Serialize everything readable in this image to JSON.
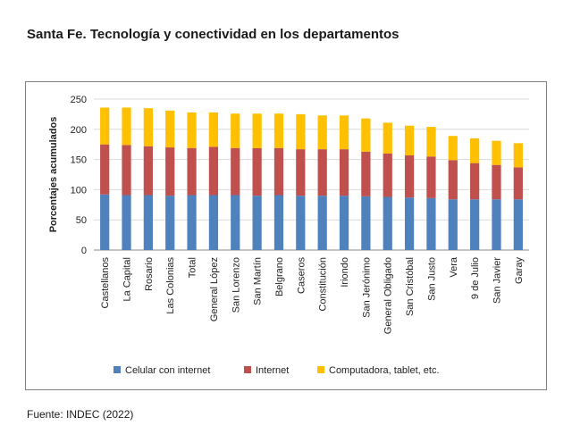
{
  "title": "Santa Fe. Tecnología y conectividad en los departamentos",
  "source": "Fuente: INDEC (2022)",
  "chart_data": {
    "type": "bar",
    "stacked": true,
    "ylabel": "Porcentajes acumulados",
    "xlabel": "",
    "ylim": [
      0,
      250
    ],
    "yticks": [
      0,
      50,
      100,
      150,
      200,
      250
    ],
    "grid": true,
    "legend_position": "bottom",
    "categories": [
      "Castellanos",
      "La Capital",
      "Rosario",
      "Las Colonias",
      "Total",
      "General López",
      "San Lorenzo",
      "San Martín",
      "Belgrano",
      "Caseros",
      "Constitución",
      "Iriondo",
      "San Jerónimo",
      "General Obligado",
      "San Cristóbal",
      "San Justo",
      "Vera",
      "9 de Julio",
      "San Javier",
      "Garay"
    ],
    "series": [
      {
        "name": "Celular con internet",
        "color": "#4f81bd",
        "values": [
          92,
          91,
          91,
          90,
          91,
          91,
          91,
          90,
          91,
          90,
          90,
          90,
          89,
          88,
          87,
          86,
          84,
          84,
          84,
          84
        ]
      },
      {
        "name": "Internet",
        "color": "#c0504d",
        "values": [
          83,
          83,
          81,
          80,
          78,
          80,
          78,
          79,
          78,
          77,
          77,
          77,
          74,
          72,
          70,
          69,
          65,
          60,
          57,
          53
        ]
      },
      {
        "name": "Computadora, tablet, etc.",
        "color": "#ffc000",
        "values": [
          61,
          62,
          63,
          61,
          59,
          57,
          57,
          57,
          57,
          58,
          56,
          56,
          55,
          51,
          49,
          49,
          40,
          41,
          40,
          40
        ]
      }
    ]
  }
}
